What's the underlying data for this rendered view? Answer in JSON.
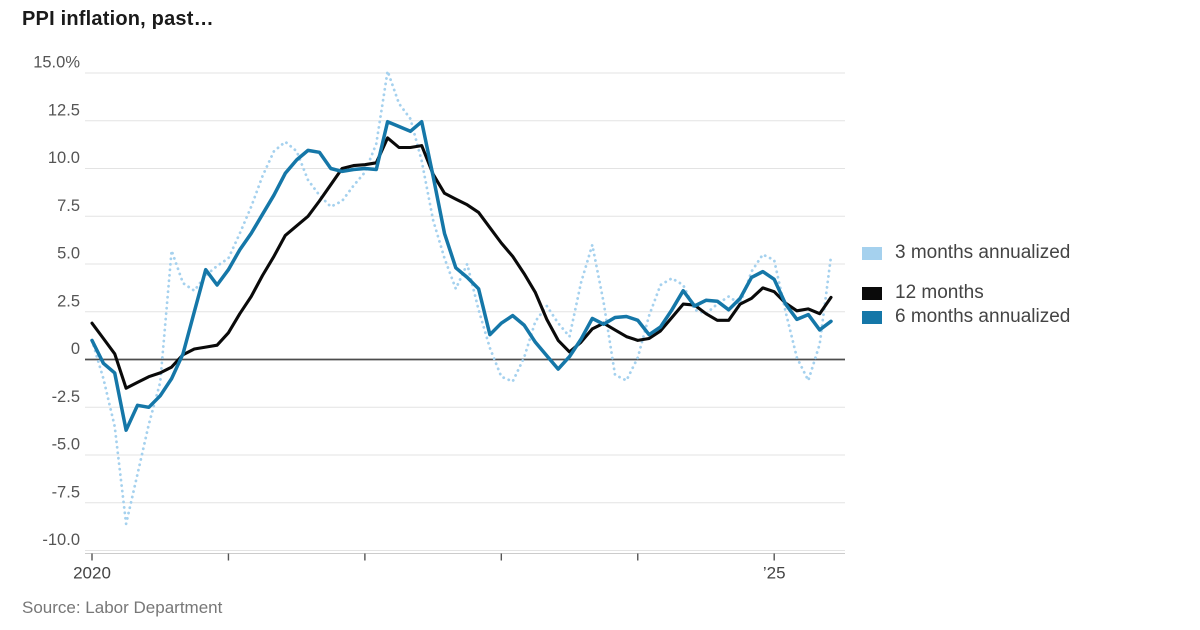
{
  "title": "PPI inflation, past…",
  "source": "Source: Labor Department",
  "colors": {
    "series_3mo": "#a5d1ee",
    "series_12mo": "#0a0a0a",
    "series_6mo": "#1577a8",
    "gridline": "#e3e3e3",
    "zero_line": "#4d4d4d",
    "axis_line": "#cccccc",
    "tick_mark": "#555555",
    "axis_text": "#555555",
    "x_axis_text": "#444444"
  },
  "legend": [
    {
      "label": "3 months annualized",
      "color": "#a5d1ee",
      "grouped": false
    },
    {
      "label": "12 months",
      "color": "#0a0a0a",
      "grouped": true
    },
    {
      "label": "6 months annualized",
      "color": "#1577a8",
      "grouped": true
    }
  ],
  "chart_data": {
    "type": "line",
    "x_unit": "month",
    "x_range": [
      "2020-01",
      "2025-06"
    ],
    "ylim": [
      -10,
      15
    ],
    "grid": true,
    "legend_position": "right",
    "y_ticks": [
      {
        "value": 15,
        "label": "15.0%"
      },
      {
        "value": 12.5,
        "label": "12.5"
      },
      {
        "value": 10,
        "label": "10.0"
      },
      {
        "value": 7.5,
        "label": "7.5"
      },
      {
        "value": 5,
        "label": "5.0"
      },
      {
        "value": 2.5,
        "label": "2.5"
      },
      {
        "value": 0,
        "label": "0"
      },
      {
        "value": -2.5,
        "label": "-2.5"
      },
      {
        "value": -5,
        "label": "-5.0"
      },
      {
        "value": -7.5,
        "label": "-7.5"
      },
      {
        "value": -10,
        "label": "-10.0"
      }
    ],
    "x_ticks": [
      {
        "month_index": 0,
        "label": "2020"
      },
      {
        "month_index": 12,
        "label": ""
      },
      {
        "month_index": 24,
        "label": ""
      },
      {
        "month_index": 36,
        "label": ""
      },
      {
        "month_index": 48,
        "label": ""
      },
      {
        "month_index": 60,
        "label": "’25"
      }
    ],
    "series": [
      {
        "name": "3 months annualized",
        "style": "dotted",
        "color": "#a5d1ee",
        "values": [
          1.0,
          -1.0,
          -3.5,
          -8.6,
          -6.0,
          -3.4,
          -1.2,
          5.7,
          4.0,
          3.6,
          4.4,
          4.9,
          5.3,
          6.6,
          8.0,
          9.6,
          10.9,
          11.4,
          10.9,
          9.4,
          8.6,
          8.0,
          8.3,
          9.1,
          9.8,
          11.3,
          15.1,
          13.4,
          12.6,
          10.4,
          7.3,
          5.3,
          3.7,
          5.0,
          2.6,
          0.6,
          -0.9,
          -1.15,
          0.1,
          2.0,
          2.8,
          1.9,
          1.2,
          4.0,
          6.0,
          3.0,
          -0.8,
          -1.1,
          0.1,
          2.3,
          3.9,
          4.25,
          3.9,
          2.6,
          2.4,
          2.9,
          3.3,
          2.9,
          4.6,
          5.5,
          5.2,
          2.5,
          0.1,
          -1.1,
          0.8,
          5.4
        ]
      },
      {
        "name": "12 months",
        "style": "solid",
        "color": "#0a0a0a",
        "values": [
          1.9,
          1.1,
          0.3,
          -1.5,
          -1.2,
          -0.9,
          -0.7,
          -0.4,
          0.25,
          0.55,
          0.65,
          0.75,
          1.4,
          2.4,
          3.3,
          4.4,
          5.4,
          6.5,
          7.0,
          7.5,
          8.3,
          9.15,
          10.0,
          10.15,
          10.2,
          10.3,
          11.6,
          11.1,
          11.1,
          11.2,
          9.7,
          8.7,
          8.4,
          8.1,
          7.7,
          6.9,
          6.1,
          5.4,
          4.5,
          3.5,
          2.1,
          1.0,
          0.4,
          0.9,
          1.6,
          1.9,
          1.55,
          1.2,
          1.0,
          1.1,
          1.5,
          2.2,
          2.9,
          2.85,
          2.4,
          2.05,
          2.05,
          2.9,
          3.2,
          3.75,
          3.55,
          2.95,
          2.55,
          2.65,
          2.4,
          3.25
        ]
      },
      {
        "name": "6 months annualized",
        "style": "solid",
        "color": "#1577a8",
        "values": [
          1.0,
          -0.2,
          -0.7,
          -3.7,
          -2.4,
          -2.5,
          -1.9,
          -1.0,
          0.3,
          2.5,
          4.7,
          3.9,
          4.7,
          5.75,
          6.6,
          7.6,
          8.6,
          9.75,
          10.45,
          10.95,
          10.85,
          10.0,
          9.85,
          9.95,
          10.0,
          9.95,
          12.45,
          12.2,
          11.95,
          12.45,
          9.6,
          6.6,
          4.8,
          4.3,
          3.7,
          1.3,
          1.9,
          2.3,
          1.8,
          0.9,
          0.2,
          -0.5,
          0.15,
          1.05,
          2.15,
          1.85,
          2.2,
          2.25,
          2.05,
          1.3,
          1.7,
          2.6,
          3.6,
          2.8,
          3.1,
          3.05,
          2.6,
          3.2,
          4.3,
          4.6,
          4.2,
          2.9,
          2.1,
          2.35,
          1.55,
          2.0
        ]
      }
    ]
  }
}
